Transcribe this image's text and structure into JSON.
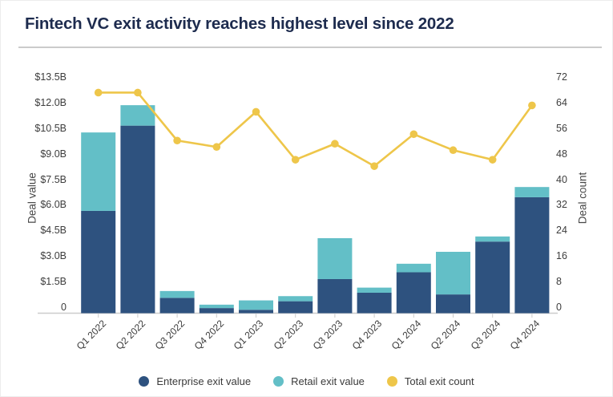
{
  "title": "Fintech VC exit activity reaches highest level since 2022",
  "colors": {
    "enterprise_bar": "#2e527f",
    "retail_bar": "#63bfc7",
    "count_line": "#eec64a",
    "title_text": "#1d2b4e",
    "tick_text": "#3d3d3d",
    "axis_line": "#cccccc",
    "divider": "#cbcbcb"
  },
  "chart_data": {
    "type": "bar",
    "subtype": "stacked-bar-with-line",
    "title": "Fintech VC exit activity reaches highest level since 2022",
    "categories": [
      "Q1 2022",
      "Q2 2022",
      "Q3 2022",
      "Q4 2022",
      "Q1 2023",
      "Q2 2023",
      "Q3 2023",
      "Q4 2023",
      "Q1 2024",
      "Q2 2024",
      "Q3 2024",
      "Q4 2024"
    ],
    "series": [
      {
        "name": "Enterprise exit value",
        "type": "bar",
        "stack": "deal-value",
        "axis": "left",
        "unit": "USD billions",
        "color": "#2e527f",
        "values": [
          6.0,
          11.0,
          0.9,
          0.3,
          0.2,
          0.7,
          2.0,
          1.2,
          2.4,
          1.1,
          4.2,
          6.8
        ]
      },
      {
        "name": "Retail exit value",
        "type": "bar",
        "stack": "deal-value",
        "axis": "left",
        "unit": "USD billions",
        "color": "#63bfc7",
        "values": [
          4.6,
          1.2,
          0.4,
          0.2,
          0.55,
          0.3,
          2.4,
          0.3,
          0.5,
          2.5,
          0.3,
          0.6
        ]
      },
      {
        "name": "Total exit count",
        "type": "line",
        "axis": "right",
        "unit": "deals",
        "color": "#eec64a",
        "values": [
          69,
          69,
          54,
          52,
          63,
          48,
          53,
          46,
          56,
          51,
          48,
          65
        ]
      }
    ],
    "left_axis": {
      "label": "Deal value",
      "range": [
        0,
        13.5
      ],
      "ticks": [
        "$13.5B",
        "$12.0B",
        "$10.5B",
        "$9.0B",
        "$7.5B",
        "$6.0B",
        "$4.5B",
        "$3.0B",
        "$1.5B",
        "0"
      ]
    },
    "right_axis": {
      "label": "Deal count",
      "range": [
        0,
        72
      ],
      "ticks": [
        "72",
        "64",
        "56",
        "48",
        "40",
        "32",
        "24",
        "16",
        "8",
        "0"
      ]
    },
    "grid": false,
    "legend_position": "bottom"
  }
}
